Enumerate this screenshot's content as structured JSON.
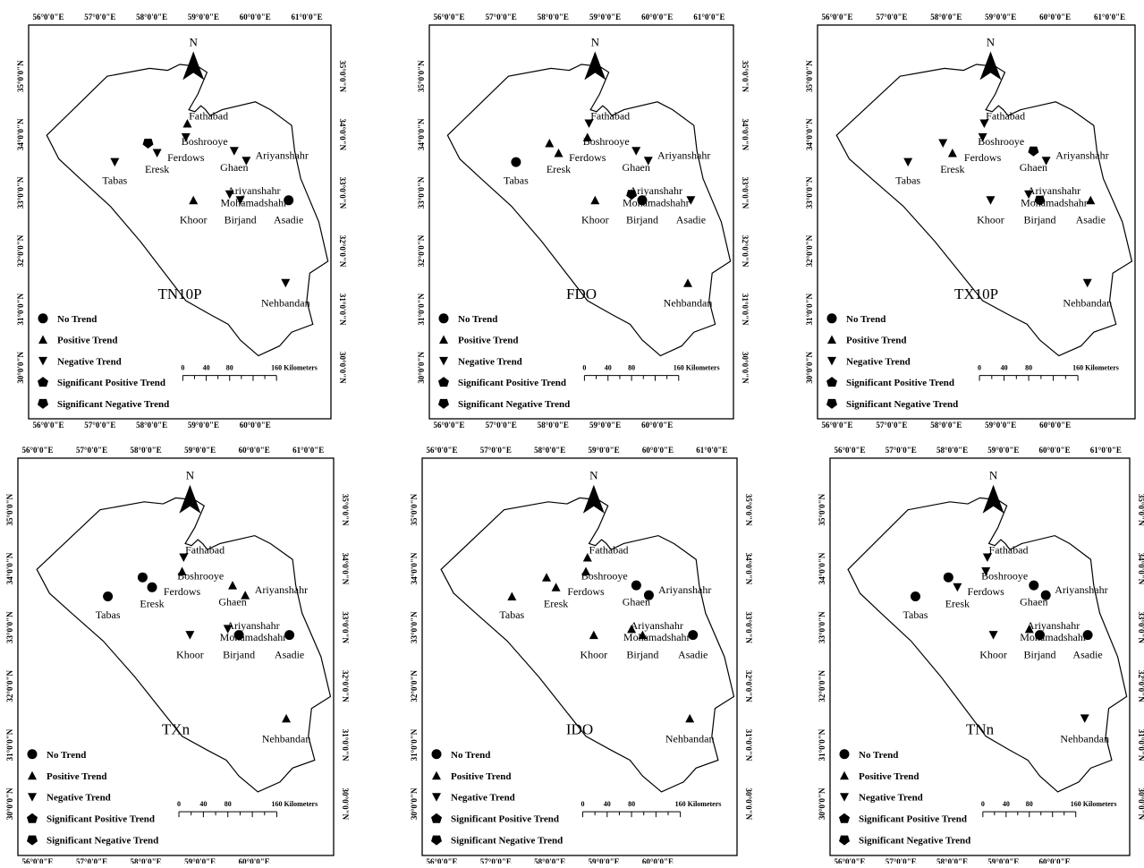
{
  "north_letter": "N",
  "lon_ticks": [
    "56°0'0\"E",
    "57°0'0\"E",
    "58°0'0\"E",
    "59°0'0\"E",
    "60°0'0\"E",
    "61°0'0\"E"
  ],
  "lat_ticks": [
    "35°0'0\"N",
    "34°0'0\"N",
    "33°0'0\"N",
    "32°0'0\"N",
    "31°0'0\"N",
    "30°0'0\"N"
  ],
  "legend": [
    {
      "symbol": "circle",
      "label": "No Trend"
    },
    {
      "symbol": "triangle-up",
      "label": "Positive Trend"
    },
    {
      "symbol": "triangle-down",
      "label": "Negative Trend"
    },
    {
      "symbol": "pentagon-up",
      "label": "Significant Positive Trend"
    },
    {
      "symbol": "pentagon-down",
      "label": "Significant  Negative Trend"
    }
  ],
  "scale_bar": {
    "ticks": [
      "0",
      "40",
      "80",
      "160 Kilometers"
    ]
  },
  "station_names": [
    "Fathabad",
    "Boshrooye",
    "Ferdows",
    "Tabas",
    "Eresk",
    "Ghaen",
    "Ariyanshahr",
    "Ariyanshahr",
    "Mohamadshahr",
    "Khoor",
    "Birjand",
    "Asadie",
    "Nehbandan"
  ],
  "panels": [
    {
      "index": "TN10P",
      "symbols": {
        "Fathabad": "triangle-up",
        "Boshrooye": "pentagon-down",
        "Ferdows": "triangle-down",
        "Tabas": "triangle-down",
        "Eresk": "triangle-down",
        "Ghaen": "triangle-down",
        "Ariyanshahr": "triangle-down",
        "Mohamadshahr": "triangle-down",
        "Khoor": "triangle-up",
        "Birjand": "triangle-down",
        "Asadie": "circle",
        "Nehbandan": "triangle-down"
      }
    },
    {
      "index": "FDO",
      "symbols": {
        "Fathabad": "triangle-down",
        "Boshrooye": "triangle-up",
        "Ferdows": "triangle-up",
        "Tabas": "circle",
        "Eresk": "triangle-up",
        "Ghaen": "triangle-down",
        "Ariyanshahr": "triangle-down",
        "Mohamadshahr": "pentagon-down",
        "Khoor": "triangle-up",
        "Birjand": "circle",
        "Asadie": "triangle-down",
        "Nehbandan": "triangle-up"
      }
    },
    {
      "index": "TX10P",
      "symbols": {
        "Fathabad": "triangle-down",
        "Boshrooye": "triangle-down",
        "Ferdows": "triangle-down",
        "Tabas": "triangle-down",
        "Eresk": "triangle-up",
        "Ghaen": "pentagon-down",
        "Ariyanshahr": "triangle-down",
        "Mohamadshahr": "triangle-down",
        "Khoor": "triangle-down",
        "Birjand": "pentagon-down",
        "Asadie": "triangle-up",
        "Nehbandan": "triangle-down"
      }
    },
    {
      "index": "TXn",
      "symbols": {
        "Fathabad": "triangle-down",
        "Boshrooye": "circle",
        "Ferdows": "triangle-up",
        "Tabas": "circle",
        "Eresk": "circle",
        "Ghaen": "triangle-up",
        "Ariyanshahr": "triangle-up",
        "Mohamadshahr": "triangle-down",
        "Khoor": "triangle-down",
        "Birjand": "circle",
        "Asadie": "circle",
        "Nehbandan": "triangle-up"
      }
    },
    {
      "index": "IDO",
      "symbols": {
        "Fathabad": "triangle-up",
        "Boshrooye": "triangle-up",
        "Ferdows": "triangle-up",
        "Tabas": "triangle-up",
        "Eresk": "triangle-up",
        "Ghaen": "circle",
        "Ariyanshahr": "circle",
        "Mohamadshahr": "triangle-up",
        "Khoor": "triangle-up",
        "Birjand": "triangle-up",
        "Asadie": "circle",
        "Nehbandan": "triangle-up"
      }
    },
    {
      "index": "TNn",
      "symbols": {
        "Fathabad": "triangle-down",
        "Boshrooye": "circle",
        "Ferdows": "triangle-down",
        "Tabas": "circle",
        "Eresk": "triangle-down",
        "Ghaen": "circle",
        "Ariyanshahr": "circle",
        "Mohamadshahr": "triangle-up",
        "Khoor": "triangle-down",
        "Birjand": "circle",
        "Asadie": "circle",
        "Nehbandan": "triangle-down"
      }
    }
  ]
}
